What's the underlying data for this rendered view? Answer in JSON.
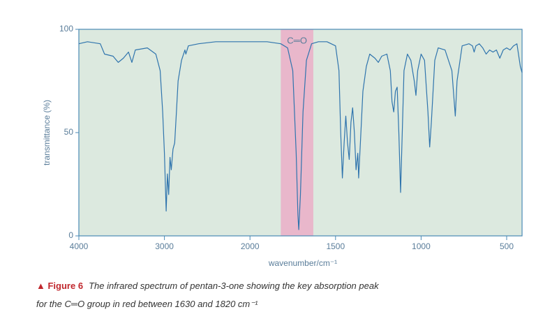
{
  "chart_data": {
    "type": "line",
    "x_label": "wavenumber/cm⁻¹",
    "y_label": "transmittance (%)",
    "xlim": [
      4000,
      410
    ],
    "xticks": [
      4000,
      3000,
      2000,
      1500,
      1000,
      500
    ],
    "ylim": [
      0,
      100
    ],
    "yticks": [
      0,
      50,
      100
    ],
    "color": "#2f74ad",
    "background": "#dce9df",
    "highlight": {
      "from": 1820,
      "to": 1630,
      "label": "C═O",
      "color": "#e9b7cb"
    },
    "x": [
      4000,
      3900,
      3750,
      3700,
      3600,
      3540,
      3480,
      3420,
      3380,
      3340,
      3200,
      3100,
      3050,
      3020,
      3000,
      2980,
      2965,
      2950,
      2935,
      2920,
      2900,
      2880,
      2860,
      2840,
      2800,
      2760,
      2750,
      2720,
      2600,
      2400,
      2200,
      2000,
      1900,
      1820,
      1780,
      1750,
      1730,
      1720,
      1715,
      1705,
      1690,
      1670,
      1640,
      1600,
      1550,
      1500,
      1480,
      1470,
      1460,
      1450,
      1440,
      1430,
      1420,
      1410,
      1400,
      1390,
      1380,
      1370,
      1365,
      1355,
      1340,
      1320,
      1300,
      1270,
      1250,
      1230,
      1200,
      1180,
      1170,
      1160,
      1150,
      1140,
      1130,
      1120,
      1110,
      1100,
      1080,
      1060,
      1040,
      1030,
      1020,
      1000,
      980,
      960,
      950,
      940,
      920,
      900,
      860,
      820,
      800,
      790,
      760,
      720,
      700,
      690,
      680,
      660,
      640,
      620,
      600,
      580,
      560,
      540,
      520,
      500,
      480,
      460,
      440,
      420,
      410
    ],
    "values": [
      93,
      94,
      93,
      88,
      87,
      84,
      86,
      89,
      84,
      90,
      91,
      88,
      80,
      60,
      40,
      12,
      30,
      20,
      38,
      32,
      42,
      45,
      60,
      75,
      85,
      90,
      88,
      92,
      93,
      94,
      94,
      94,
      94,
      93,
      91,
      80,
      40,
      10,
      3,
      20,
      60,
      85,
      93,
      94,
      94,
      92,
      80,
      50,
      28,
      45,
      58,
      45,
      37,
      55,
      62,
      50,
      32,
      40,
      28,
      45,
      70,
      82,
      88,
      86,
      84,
      87,
      88,
      80,
      65,
      60,
      70,
      72,
      50,
      21,
      50,
      80,
      88,
      85,
      75,
      68,
      80,
      88,
      85,
      60,
      43,
      55,
      85,
      91,
      90,
      80,
      58,
      75,
      92,
      93,
      92,
      89,
      92,
      93,
      91,
      88,
      90,
      89,
      90,
      86,
      90,
      91,
      90,
      92,
      93,
      82,
      79
    ]
  },
  "caption": {
    "label": "Figure 6",
    "lines": [
      "The infrared spectrum of pentan-3-one showing the key absorption peak",
      "for the C═O group in red between 1630 and 1820 cm⁻¹"
    ]
  }
}
